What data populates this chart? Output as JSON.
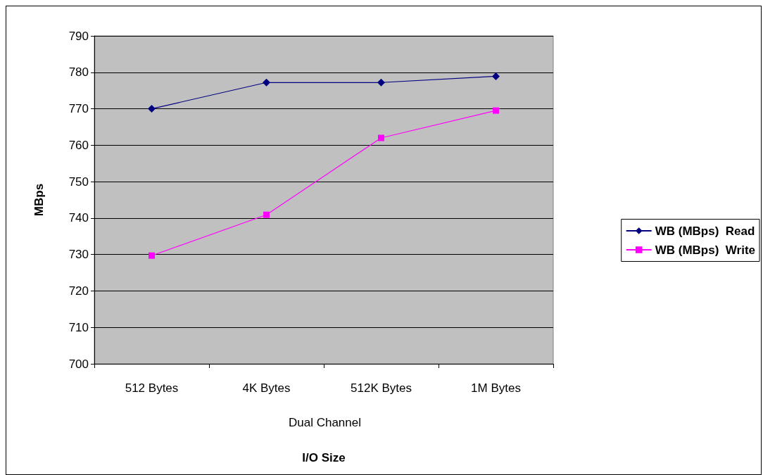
{
  "chart_data": {
    "type": "line",
    "xlabel": "I/O Size",
    "ylabel": "MBps",
    "categories": [
      "512 Bytes",
      "4K Bytes",
      "512K Bytes",
      "1M Bytes"
    ],
    "series": [
      {
        "name": "WB (MBps)  Read",
        "color": "#000080",
        "marker": "diamond",
        "values": [
          770.0,
          777.2,
          777.2,
          778.9
        ]
      },
      {
        "name": "WB (MBps)  Write",
        "color": "#ff00ff",
        "marker": "square",
        "values": [
          729.7,
          740.9,
          762.0,
          769.5
        ]
      }
    ],
    "ylim": [
      700,
      790
    ],
    "yticks": [
      700,
      710,
      720,
      730,
      740,
      750,
      760,
      770,
      780,
      790
    ],
    "grid": "y",
    "legend": "right",
    "annotations": [
      "Dual Channel"
    ]
  }
}
